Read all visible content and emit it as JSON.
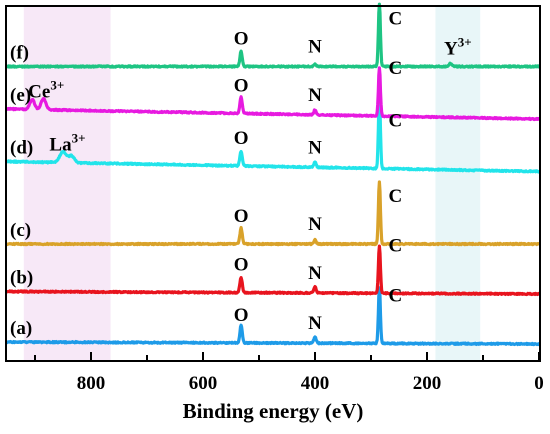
{
  "chart_data": {
    "type": "line",
    "xlabel": "Binding energy (eV)",
    "ylabel": "",
    "xlim": [
      950,
      0
    ],
    "x_reversed": true,
    "x_ticks": [
      800,
      600,
      400,
      200,
      0
    ],
    "grid": false,
    "y_ticks_labeled": false,
    "highlight_bands": [
      {
        "x_range": [
          920,
          765
        ],
        "color": "#f7e8f7"
      },
      {
        "x_range": [
          185,
          105
        ],
        "color": "#e8f6f8"
      }
    ],
    "series": [
      {
        "name": "(a)",
        "color": "#1e9be8",
        "baseline": 0.0,
        "slope": 0.04,
        "peaks": [
          {
            "x": 532,
            "height": 0.35,
            "width": 3
          },
          {
            "x": 400,
            "height": 0.12,
            "width": 3
          },
          {
            "x": 285,
            "height": 1.1,
            "width": 2.5
          }
        ],
        "annotations": [
          {
            "x": 532,
            "text": "O",
            "sup": ""
          },
          {
            "x": 400,
            "text": "N",
            "sup": ""
          },
          {
            "x": 285,
            "text": "C",
            "sup": ""
          }
        ]
      },
      {
        "name": "(b)",
        "color": "#e8141e",
        "baseline": 1.0,
        "slope": 0.05,
        "peaks": [
          {
            "x": 532,
            "height": 0.3,
            "width": 3
          },
          {
            "x": 400,
            "height": 0.12,
            "width": 3
          },
          {
            "x": 285,
            "height": 0.95,
            "width": 2.5
          }
        ],
        "annotations": [
          {
            "x": 532,
            "text": "O",
            "sup": ""
          },
          {
            "x": 400,
            "text": "N",
            "sup": ""
          },
          {
            "x": 285,
            "text": "C",
            "sup": ""
          }
        ]
      },
      {
        "name": "(c)",
        "color": "#d9a22a",
        "baseline": 2.0,
        "slope": 0.0,
        "peaks": [
          {
            "x": 532,
            "height": 0.32,
            "width": 3
          },
          {
            "x": 400,
            "height": 0.08,
            "width": 3
          },
          {
            "x": 285,
            "height": 1.25,
            "width": 2.5
          }
        ],
        "annotations": [
          {
            "x": 532,
            "text": "O",
            "sup": ""
          },
          {
            "x": 400,
            "text": "N",
            "sup": ""
          },
          {
            "x": 285,
            "text": "C",
            "sup": ""
          }
        ]
      },
      {
        "name": "(d)",
        "color": "#22e4ea",
        "baseline": 3.45,
        "slope": 0.2,
        "peaks": [
          {
            "x": 850,
            "height": 0.22,
            "width": 8
          },
          {
            "x": 835,
            "height": 0.14,
            "width": 7
          },
          {
            "x": 532,
            "height": 0.3,
            "width": 3
          },
          {
            "x": 400,
            "height": 0.1,
            "width": 3
          },
          {
            "x": 285,
            "height": 1.45,
            "width": 2.5
          }
        ],
        "annotations": [
          {
            "x": 842,
            "text": "La",
            "sup": "3+"
          },
          {
            "x": 532,
            "text": "O",
            "sup": ""
          },
          {
            "x": 400,
            "text": "N",
            "sup": ""
          },
          {
            "x": 285,
            "text": "C",
            "sup": ""
          }
        ]
      },
      {
        "name": "(e)",
        "color": "#e71ae0",
        "baseline": 4.5,
        "slope": 0.2,
        "peaks": [
          {
            "x": 905,
            "height": 0.2,
            "width": 6
          },
          {
            "x": 885,
            "height": 0.22,
            "width": 6
          },
          {
            "x": 532,
            "height": 0.32,
            "width": 3
          },
          {
            "x": 400,
            "height": 0.1,
            "width": 3
          },
          {
            "x": 285,
            "height": 0.95,
            "width": 2.5
          }
        ],
        "annotations": [
          {
            "x": 880,
            "text": "Ce",
            "sup": "3+"
          },
          {
            "x": 532,
            "text": "O",
            "sup": ""
          },
          {
            "x": 400,
            "text": "N",
            "sup": ""
          },
          {
            "x": 285,
            "text": "C",
            "sup": ""
          }
        ]
      },
      {
        "name": "(f)",
        "color": "#1ec483",
        "baseline": 5.55,
        "slope": 0.0,
        "peaks": [
          {
            "x": 532,
            "height": 0.3,
            "width": 3
          },
          {
            "x": 400,
            "height": 0.05,
            "width": 3
          },
          {
            "x": 285,
            "height": 1.25,
            "width": 2.5
          },
          {
            "x": 158,
            "height": 0.06,
            "width": 4
          }
        ],
        "annotations": [
          {
            "x": 532,
            "text": "O",
            "sup": ""
          },
          {
            "x": 400,
            "text": "N",
            "sup": ""
          },
          {
            "x": 285,
            "text": "C",
            "sup": ""
          },
          {
            "x": 145,
            "text": "Y",
            "sup": "3+"
          }
        ]
      }
    ]
  }
}
